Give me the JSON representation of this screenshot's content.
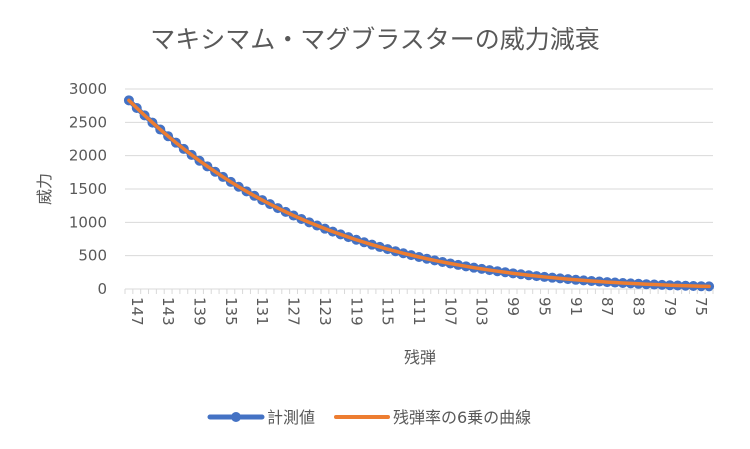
{
  "chart_data": {
    "type": "line",
    "title": "マキシマム・マグブラスターの威力減衰",
    "xlabel": "残弾",
    "ylabel": "威力",
    "ylim": [
      0,
      3000
    ],
    "yticks": [
      0,
      500,
      1000,
      1500,
      2000,
      2500,
      3000
    ],
    "x": [
      148,
      147,
      146,
      145,
      144,
      143,
      142,
      141,
      140,
      139,
      138,
      137,
      136,
      135,
      134,
      133,
      132,
      131,
      130,
      129,
      128,
      127,
      126,
      125,
      124,
      123,
      122,
      121,
      120,
      119,
      118,
      117,
      116,
      115,
      114,
      113,
      112,
      111,
      110,
      109,
      108,
      107,
      106,
      105,
      104,
      103,
      102,
      101,
      100,
      99,
      98,
      97,
      96,
      95,
      94,
      93,
      92,
      91,
      90,
      89,
      88,
      87,
      86,
      85,
      84,
      83,
      82,
      81,
      80,
      79,
      78,
      77,
      76,
      75,
      74
    ],
    "x_tick_labels": [
      "147",
      "143",
      "139",
      "135",
      "131",
      "127",
      "123",
      "119",
      "115",
      "111",
      "107",
      "103",
      "99",
      "95",
      "91",
      "87",
      "83",
      "79",
      "75"
    ],
    "grid": "horizontal",
    "legend_position": "bottom",
    "series": [
      {
        "name": "計測値",
        "color": "#4472C4",
        "marker": "circle",
        "values": [
          2830,
          2715,
          2604,
          2496,
          2392,
          2292,
          2195,
          2101,
          2011,
          1924,
          1840,
          1759,
          1681,
          1606,
          1534,
          1465,
          1398,
          1334,
          1273,
          1214,
          1157,
          1102,
          1050,
          1000,
          952,
          905,
          861,
          819,
          778,
          739,
          701,
          665,
          631,
          598,
          567,
          536,
          508,
          480,
          454,
          429,
          405,
          383,
          361,
          340,
          320,
          302,
          284,
          267,
          251,
          235,
          221,
          207,
          194,
          181,
          170,
          159,
          148,
          138,
          129,
          120,
          112,
          104,
          97,
          90,
          84,
          78,
          72,
          67,
          62,
          57,
          53,
          49,
          45,
          42,
          39
        ]
      },
      {
        "name": "残弾率の6乗の曲線",
        "color": "#ED7D31",
        "marker": "none",
        "values": [
          2830,
          2715,
          2604,
          2496,
          2392,
          2292,
          2195,
          2101,
          2011,
          1924,
          1840,
          1759,
          1681,
          1606,
          1534,
          1465,
          1398,
          1334,
          1273,
          1214,
          1157,
          1102,
          1050,
          1000,
          952,
          905,
          861,
          819,
          778,
          739,
          701,
          665,
          631,
          598,
          567,
          536,
          508,
          480,
          454,
          429,
          405,
          383,
          361,
          340,
          320,
          302,
          284,
          267,
          251,
          235,
          221,
          207,
          194,
          181,
          170,
          159,
          148,
          138,
          129,
          120,
          112,
          104,
          97,
          90,
          84,
          78,
          72,
          67,
          62,
          57,
          53,
          49,
          45,
          42,
          39
        ]
      }
    ]
  }
}
